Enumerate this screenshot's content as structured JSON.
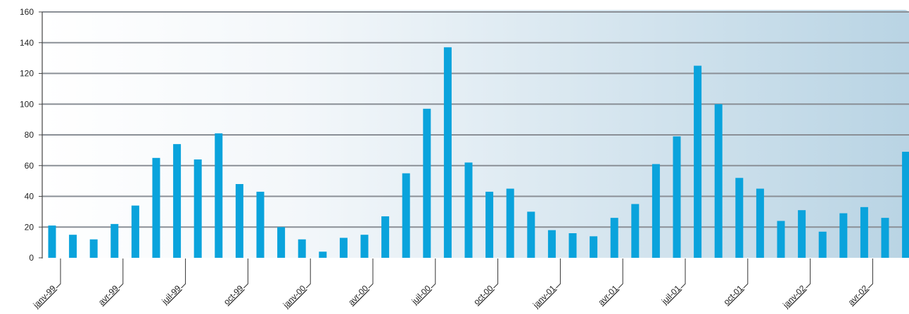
{
  "chart_data": {
    "type": "bar",
    "title": "",
    "xlabel": "",
    "ylabel": "",
    "ylim": [
      0,
      160
    ],
    "yticks": [
      0,
      20,
      40,
      60,
      80,
      100,
      120,
      140,
      160
    ],
    "grid": true,
    "x_tick_labels": [
      "janv-99",
      "avr-99",
      "juil-99",
      "oct-99",
      "janv-00",
      "avr-00",
      "juil-00",
      "oct-00",
      "janv-01",
      "avr-01",
      "juil-01",
      "oct-01",
      "janv-02",
      "avr-02"
    ],
    "values": [
      21,
      15,
      12,
      22,
      34,
      65,
      74,
      64,
      81,
      48,
      43,
      20,
      12,
      4,
      13,
      15,
      27,
      55,
      97,
      137,
      62,
      43,
      45,
      30,
      18,
      16,
      14,
      26,
      35,
      61,
      79,
      125,
      100,
      52,
      45,
      24,
      31,
      17,
      29,
      33,
      26,
      69
    ],
    "colors": {
      "bar": "#0aa3dc",
      "grid": "#8a8f96",
      "background_start": "#ffffff",
      "background_end": "#b9d4e4"
    }
  }
}
